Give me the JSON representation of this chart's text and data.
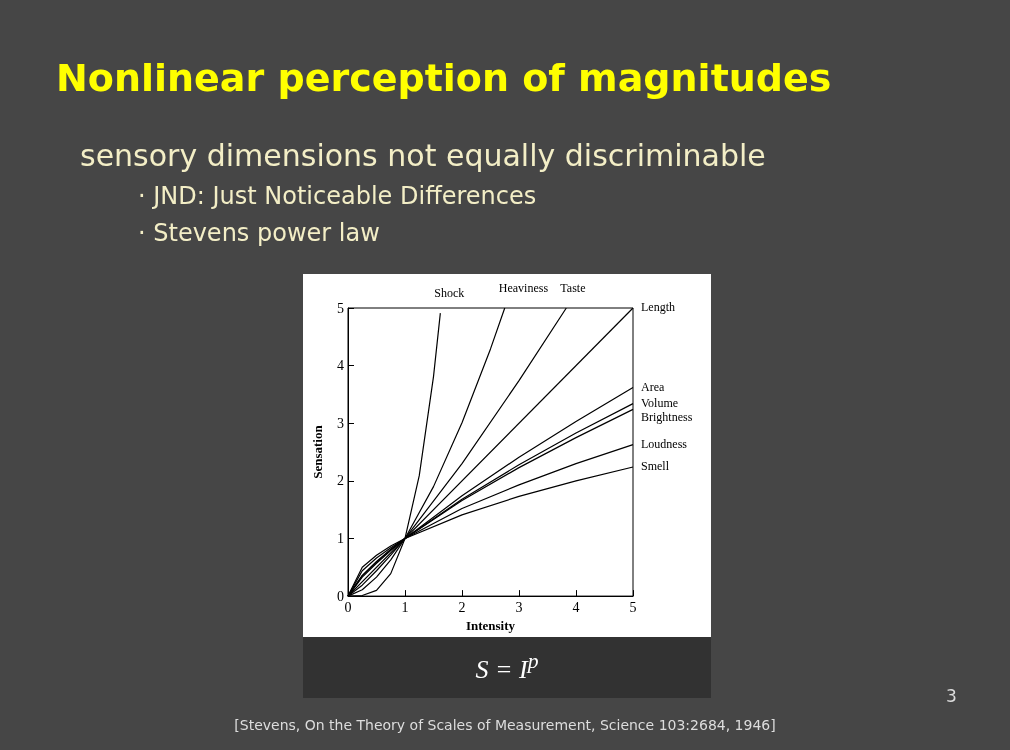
{
  "chart_data": {
    "type": "line",
    "title": "Nonlinear perception of magnitudes",
    "subtitle": "sensory dimensions not equally discriminable",
    "xlabel": "Intensity",
    "ylabel": "Sensation",
    "annotations": [
      "· JND: Just Noticeable Differences",
      "· Stevens power law",
      "S = I$^{p}$",
      "3",
      "[Stevens, On the Theory of Scales of Measurement, Science 103:2684, 1946]"
    ],
    "xlim": [
      0,
      5
    ],
    "ylim": [
      0,
      5
    ],
    "xticks": [
      0,
      1,
      2,
      3,
      4,
      5
    ],
    "yticks": [
      0,
      1,
      2,
      3,
      4,
      5
    ],
    "grid": false,
    "marker": "none",
    "line_style": "solid",
    "series": [
      {
        "name": "Shock",
        "color": "#000000",
        "x": [
          0,
          0.25,
          0.5,
          0.75,
          1,
          1.25,
          1.5,
          1.62
        ],
        "values": [
          0,
          0.01,
          0.1,
          0.39,
          1,
          2.09,
          3.81,
          4.91
        ]
      },
      {
        "name": "Heaviness",
        "color": "#000000",
        "x": [
          0,
          0.25,
          0.5,
          0.75,
          1,
          1.5,
          2,
          2.5,
          2.75
        ],
        "values": [
          0,
          0.11,
          0.33,
          0.63,
          1,
          1.9,
          3.01,
          4.29,
          5
        ]
      },
      {
        "name": "Taste",
        "color": "#000000",
        "x": [
          0,
          0.25,
          0.5,
          0.75,
          1,
          2,
          3,
          3.83
        ],
        "values": [
          0,
          0.19,
          0.44,
          0.71,
          1,
          2.3,
          3.74,
          5
        ]
      },
      {
        "name": "Length",
        "color": "#000000",
        "x": [
          0,
          1,
          5
        ],
        "values": [
          0,
          1,
          5
        ]
      },
      {
        "name": "Area",
        "color": "#000000",
        "x": [
          0,
          0.25,
          0.5,
          0.75,
          1,
          2,
          3,
          4,
          5
        ],
        "values": [
          0,
          0.33,
          0.57,
          0.79,
          1,
          1.74,
          2.41,
          3.03,
          3.62
        ]
      },
      {
        "name": "Volume",
        "color": "#000000",
        "x": [
          0,
          0.25,
          0.5,
          0.75,
          1,
          2,
          3,
          4,
          5
        ],
        "values": [
          0,
          0.35,
          0.59,
          0.81,
          1,
          1.68,
          2.28,
          2.83,
          3.34
        ]
      },
      {
        "name": "Brightness",
        "color": "#000000",
        "x": [
          0,
          0.25,
          0.5,
          0.75,
          1,
          2,
          3,
          4,
          5
        ],
        "values": [
          0,
          0.36,
          0.6,
          0.81,
          1,
          1.66,
          2.23,
          2.75,
          3.24
        ]
      },
      {
        "name": "Loudness",
        "color": "#000000",
        "x": [
          0,
          0.25,
          0.5,
          0.75,
          1,
          2,
          3,
          4,
          5
        ],
        "values": [
          0,
          0.44,
          0.66,
          0.84,
          1,
          1.52,
          1.93,
          2.3,
          2.63
        ]
      },
      {
        "name": "Smell",
        "color": "#000000",
        "x": [
          0,
          0.25,
          0.5,
          0.75,
          1,
          2,
          3,
          4,
          5
        ],
        "values": [
          0,
          0.5,
          0.71,
          0.87,
          1,
          1.41,
          1.73,
          2,
          2.24
        ]
      }
    ]
  }
}
